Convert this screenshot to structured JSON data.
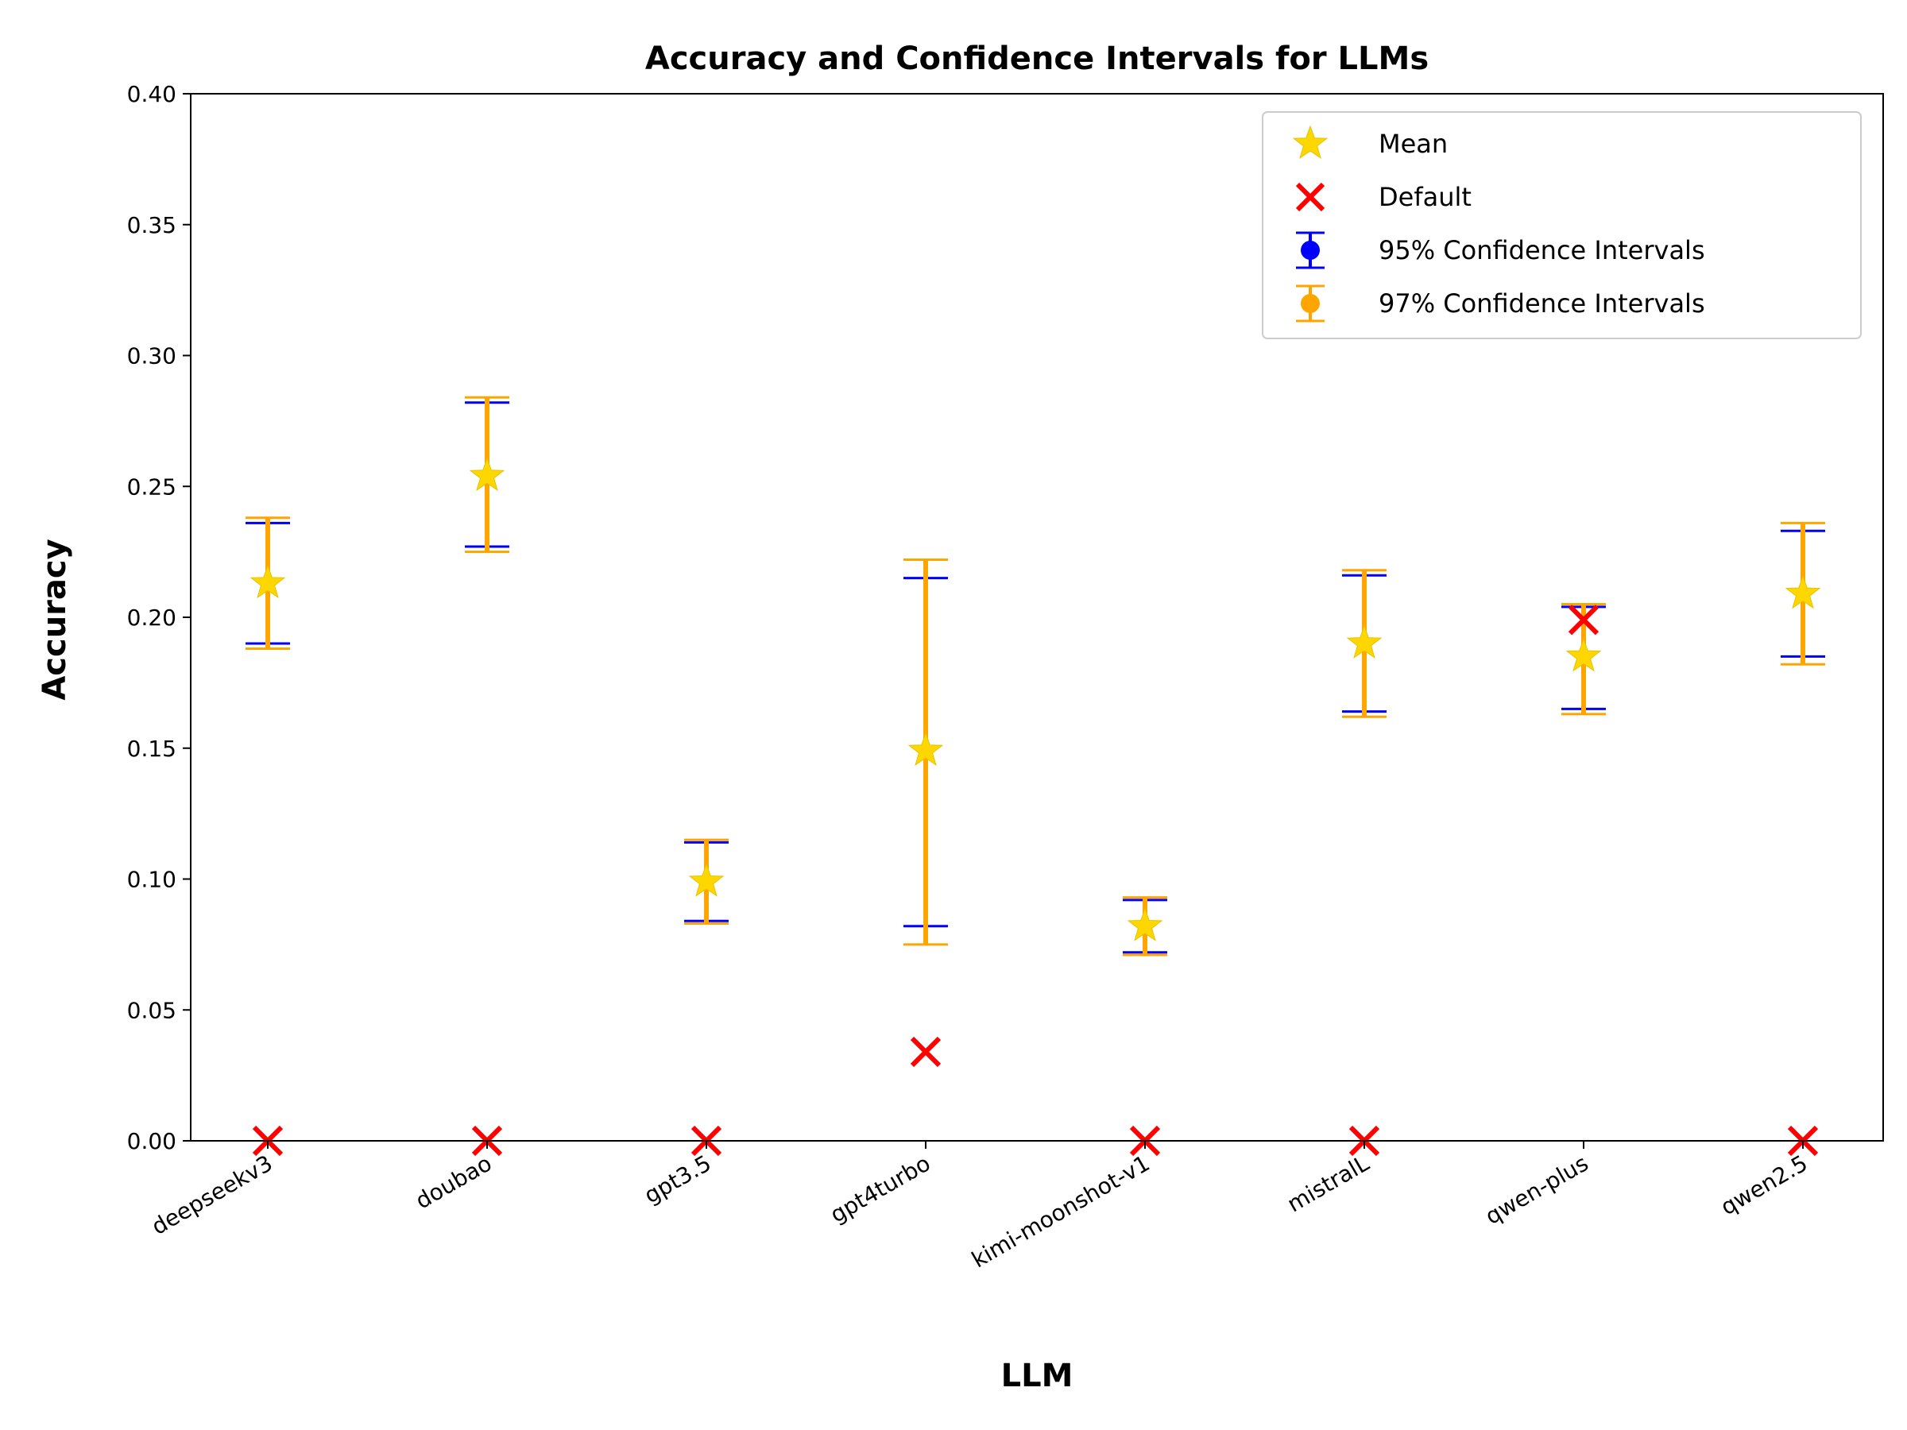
{
  "chart_data": {
    "type": "scatter",
    "title": "Accuracy and Confidence Intervals for LLMs",
    "xlabel": "LLM",
    "ylabel": "Accuracy",
    "ylim": [
      0,
      0.4
    ],
    "yticks": [
      "0.00",
      "0.05",
      "0.10",
      "0.15",
      "0.20",
      "0.25",
      "0.30",
      "0.35",
      "0.40"
    ],
    "categories": [
      "deepseekv3",
      "doubao",
      "gpt3.5",
      "gpt4turbo",
      "kimi-moonshot-v1",
      "mistralL",
      "qwen-plus",
      "qwen2.5"
    ],
    "series": [
      {
        "name": "Mean",
        "marker": "star",
        "color": "#FFD700",
        "values": [
          0.213,
          0.254,
          0.099,
          0.149,
          0.082,
          0.19,
          0.185,
          0.209
        ]
      },
      {
        "name": "Default",
        "marker": "x",
        "color": "#FF0000",
        "values": [
          0.0,
          0.0,
          0.0,
          0.034,
          0.0,
          0.0,
          0.199,
          0.0
        ]
      },
      {
        "name": "95% Confidence Intervals",
        "color": "#0000FF",
        "lower": [
          0.19,
          0.227,
          0.084,
          0.082,
          0.072,
          0.164,
          0.165,
          0.185
        ],
        "upper": [
          0.236,
          0.282,
          0.114,
          0.215,
          0.092,
          0.216,
          0.204,
          0.233
        ]
      },
      {
        "name": "97% Confidence Intervals",
        "color": "#FFA500",
        "lower": [
          0.188,
          0.225,
          0.083,
          0.075,
          0.071,
          0.162,
          0.163,
          0.182
        ],
        "upper": [
          0.238,
          0.284,
          0.115,
          0.222,
          0.093,
          0.218,
          0.205,
          0.236
        ]
      }
    ],
    "legend_position": "top-right"
  }
}
